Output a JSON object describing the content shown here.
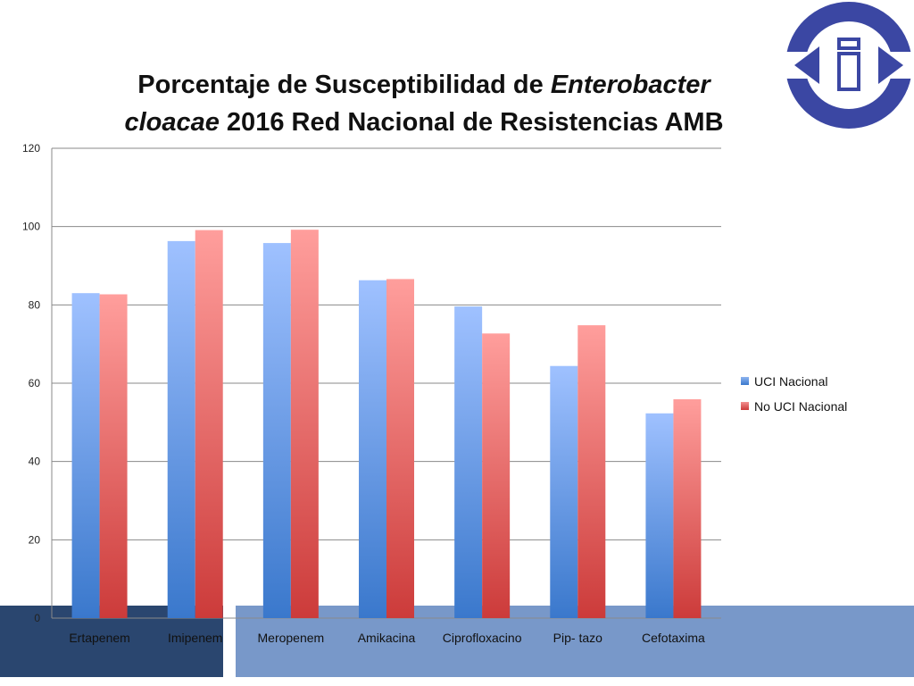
{
  "slide": {
    "title_part1": "Porcentaje de Susceptibilidad  de ",
    "title_italic1": "Enterobacter",
    "title_italic2": "cloacae",
    "title_part2": " 2016 Red Nacional de Resistencias AMB",
    "colors": {
      "band_dark": "#2a466f",
      "band_light": "#7898c9",
      "logo": "#3b47a3"
    },
    "logo_icon": "imss-style-logo"
  },
  "chart_data": {
    "type": "bar",
    "categories": [
      "Ertapenem",
      "Imipenem",
      "Meropenem",
      "Amikacina",
      "Ciprofloxacino",
      "Pip- tazo",
      "Cefotaxima"
    ],
    "series": [
      {
        "name": "UCI Nacional",
        "values": [
          83,
          96.3,
          95.8,
          86.3,
          79.6,
          64.4,
          52.3
        ],
        "color": "#4a7fc9"
      },
      {
        "name": "No UCI Nacional",
        "values": [
          82.7,
          99.1,
          99.2,
          86.6,
          72.7,
          74.8,
          55.9
        ],
        "color": "#d04545"
      }
    ],
    "y_ticks": [
      "0",
      "20",
      "40",
      "60",
      "80",
      "100",
      "120"
    ],
    "ylim": [
      0,
      120
    ],
    "grid": true,
    "legend_position": "right"
  }
}
